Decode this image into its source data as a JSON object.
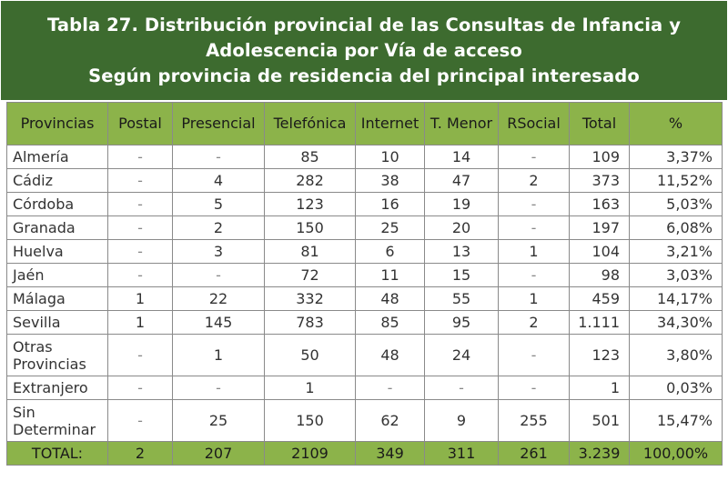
{
  "title": {
    "line1": "Tabla 27. Distribución provincial de las Consultas de Infancia y",
    "line2": "Adolescencia por Vía de acceso",
    "line3": "Según provincia de residencia del principal interesado"
  },
  "headers": [
    "Provincias",
    "Postal",
    "Presencial",
    "Telefónica",
    "Internet",
    "T. Menor",
    "RSocial",
    "Total",
    "%"
  ],
  "rows": [
    {
      "province": "Almería",
      "postal": "-",
      "presencial": "-",
      "telefonica": "85",
      "internet": "10",
      "tmenor": "14",
      "rsocial": "-",
      "total": "109",
      "pct": "3,37%"
    },
    {
      "province": "Cádiz",
      "postal": "-",
      "presencial": "4",
      "telefonica": "282",
      "internet": "38",
      "tmenor": "47",
      "rsocial": "2",
      "total": "373",
      "pct": "11,52%"
    },
    {
      "province": "Córdoba",
      "postal": "-",
      "presencial": "5",
      "telefonica": "123",
      "internet": "16",
      "tmenor": "19",
      "rsocial": "-",
      "total": "163",
      "pct": "5,03%"
    },
    {
      "province": "Granada",
      "postal": "-",
      "presencial": "2",
      "telefonica": "150",
      "internet": "25",
      "tmenor": "20",
      "rsocial": "-",
      "total": "197",
      "pct": "6,08%"
    },
    {
      "province": "Huelva",
      "postal": "-",
      "presencial": "3",
      "telefonica": "81",
      "internet": "6",
      "tmenor": "13",
      "rsocial": "1",
      "total": "104",
      "pct": "3,21%"
    },
    {
      "province": "Jaén",
      "postal": "-",
      "presencial": "-",
      "telefonica": "72",
      "internet": "11",
      "tmenor": "15",
      "rsocial": "-",
      "total": "98",
      "pct": "3,03%"
    },
    {
      "province": "Málaga",
      "postal": "1",
      "presencial": "22",
      "telefonica": "332",
      "internet": "48",
      "tmenor": "55",
      "rsocial": "1",
      "total": "459",
      "pct": "14,17%"
    },
    {
      "province": "Sevilla",
      "postal": "1",
      "presencial": "145",
      "telefonica": "783",
      "internet": "85",
      "tmenor": "95",
      "rsocial": "2",
      "total": "1.111",
      "pct": "34,30%"
    },
    {
      "province": "Otras Provincias",
      "postal": "-",
      "presencial": "1",
      "telefonica": "50",
      "internet": "48",
      "tmenor": "24",
      "rsocial": "-",
      "total": "123",
      "pct": "3,80%"
    },
    {
      "province": "Extranjero",
      "postal": "-",
      "presencial": "-",
      "telefonica": "1",
      "internet": "-",
      "tmenor": "-",
      "rsocial": "-",
      "total": "1",
      "pct": "0,03%"
    },
    {
      "province": "Sin Determinar",
      "postal": "-",
      "presencial": "25",
      "telefonica": "150",
      "internet": "62",
      "tmenor": "9",
      "rsocial": "255",
      "total": "501",
      "pct": "15,47%"
    }
  ],
  "totals": {
    "label": "TOTAL:",
    "postal": "2",
    "presencial": "207",
    "telefonica": "2109",
    "internet": "349",
    "tmenor": "311",
    "rsocial": "261",
    "total": "3.239",
    "pct": "100,00%"
  },
  "colors": {
    "title_bg": "#3d6b2f",
    "header_bg": "#8cb34a"
  }
}
